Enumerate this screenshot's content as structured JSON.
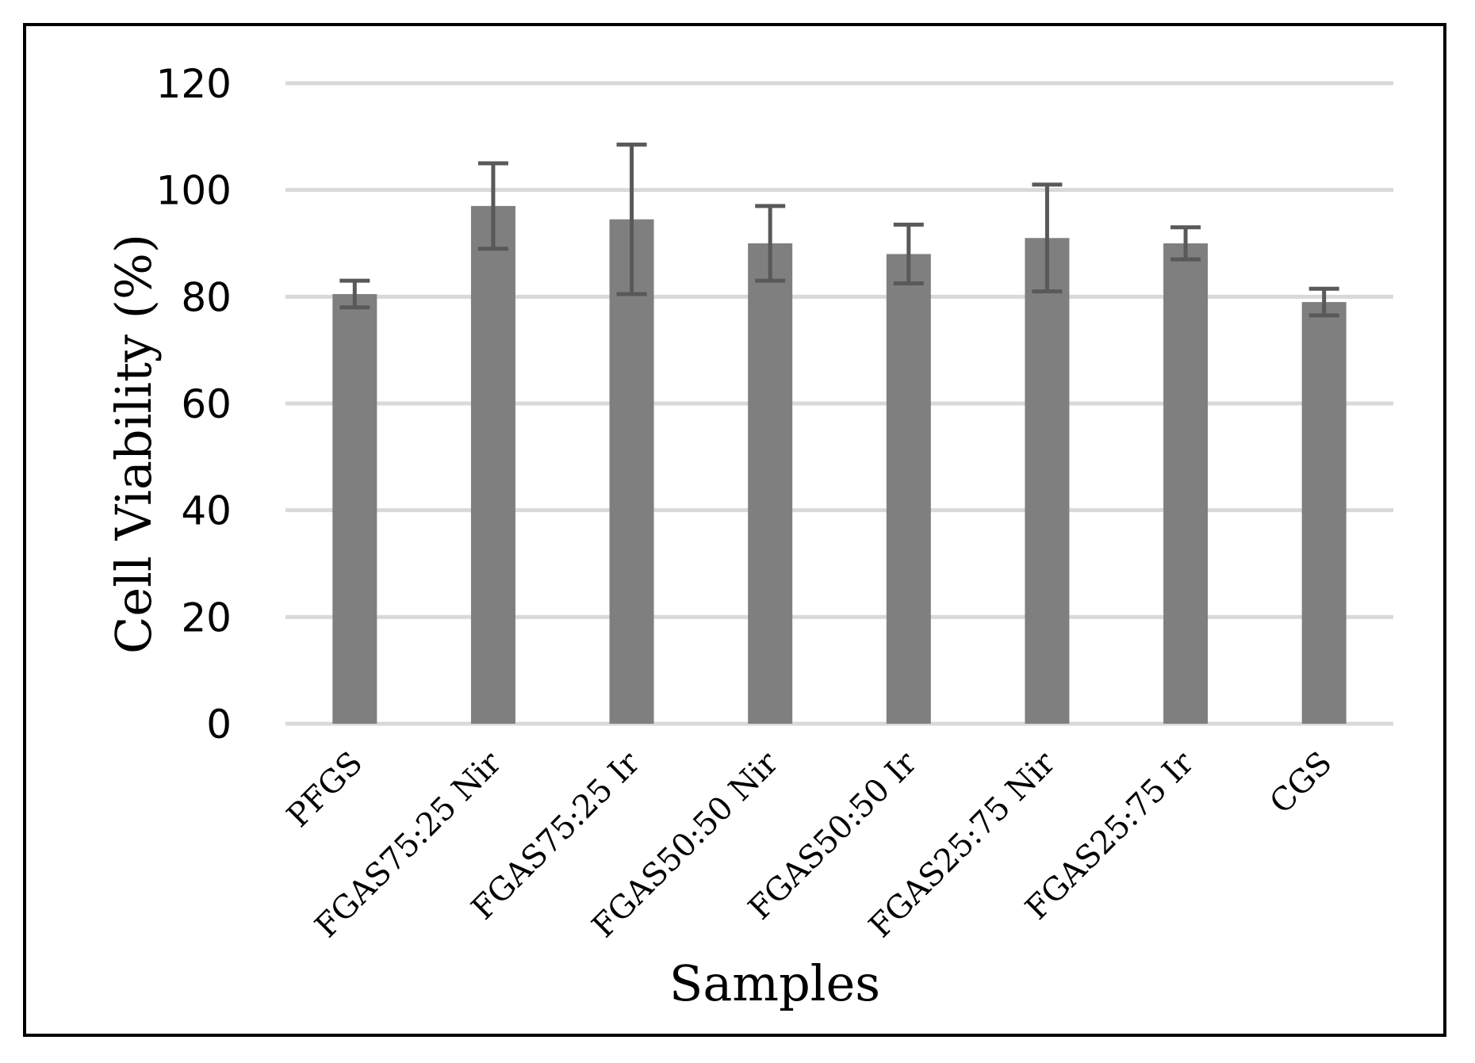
{
  "chart_data": {
    "type": "bar",
    "title": "",
    "xlabel": "Samples",
    "ylabel": "Cell Viability (%)",
    "ylim": [
      0,
      120
    ],
    "yticks": [
      0,
      20,
      40,
      60,
      80,
      100,
      120
    ],
    "grid": true,
    "categories": [
      "PFGS",
      "FGAS75:25 Nir",
      "FGAS75:25 Ir",
      "FGAS50:50 Nir",
      "FGAS50:50 Ir",
      "FGAS25:75 Nir",
      "FGAS25:75 Ir",
      "CGS"
    ],
    "series": [
      {
        "values": [
          80.5,
          97,
          94.5,
          90,
          88,
          91,
          90,
          79
        ],
        "error": [
          2.5,
          8,
          14,
          7,
          5.5,
          10,
          3,
          2.5
        ],
        "color": "#7f7f7f"
      }
    ],
    "colors": {
      "bar": "#7f7f7f",
      "error_bar": "#595959",
      "grid": "#d9d9d9",
      "border": "#000000"
    }
  }
}
